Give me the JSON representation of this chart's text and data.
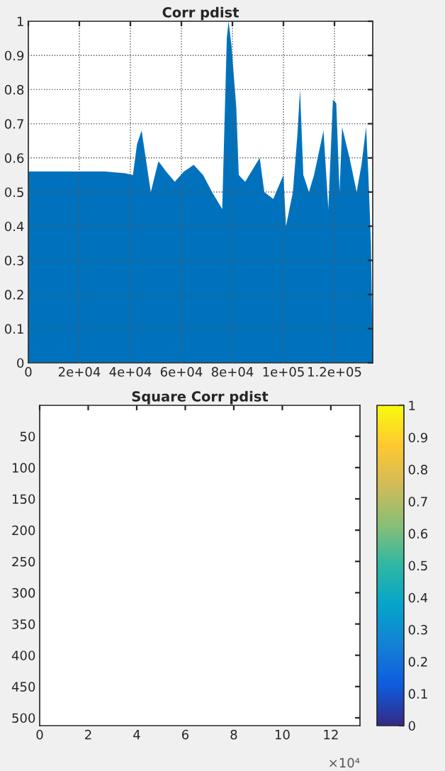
{
  "chart_data": [
    {
      "type": "area",
      "title": "Corr pdist",
      "x": [
        0,
        5000,
        10000,
        20000,
        30000,
        38000,
        41000,
        42600,
        44400,
        46000,
        48000,
        51000,
        54000,
        57400,
        61000,
        63000,
        64800,
        68500,
        72000,
        76000,
        77800,
        78500,
        79600,
        81500,
        82500,
        85000,
        90700,
        92500,
        96000,
        100000,
        101000,
        103700,
        105500,
        106500,
        107800,
        110000,
        112000,
        115700,
        117600,
        119400,
        120700,
        122000,
        123000,
        125900,
        128700,
        130600,
        132400,
        133300,
        134300,
        135000
      ],
      "series": [
        {
          "color": "#0072bd",
          "values": [
            0.56,
            0.56,
            0.56,
            0.56,
            0.56,
            0.555,
            0.55,
            0.64,
            0.68,
            0.6,
            0.5,
            0.59,
            0.56,
            0.53,
            0.56,
            0.57,
            0.58,
            0.55,
            0.5,
            0.45,
            0.95,
            1.0,
            0.93,
            0.75,
            0.55,
            0.53,
            0.6,
            0.5,
            0.48,
            0.55,
            0.4,
            0.5,
            0.67,
            0.8,
            0.55,
            0.5,
            0.55,
            0.68,
            0.45,
            0.77,
            0.76,
            0.5,
            0.69,
            0.6,
            0.5,
            0.58,
            0.69,
            0.55,
            0.35,
            0.0
          ]
        }
      ],
      "xlim": [
        0,
        135000
      ],
      "xticks": [
        0,
        {
          "value": 20000,
          "label": "2e+04"
        },
        {
          "value": 40000,
          "label": "4e+04"
        },
        {
          "value": 60000,
          "label": "6e+04"
        },
        {
          "value": 80000,
          "label": "8e+04"
        },
        {
          "value": 100000,
          "label": "1e+05"
        },
        {
          "value": 120000,
          "label": "1.2e+05"
        }
      ],
      "ylim": [
        0,
        1
      ],
      "yticks": [
        0,
        0.1,
        0.2,
        0.3,
        0.4,
        0.5,
        0.6,
        0.7,
        0.8,
        0.9,
        1
      ],
      "grid": true
    },
    {
      "type": "heatmap",
      "title": "Square Corr pdist",
      "xlim": [
        0,
        13.2
      ],
      "xticks": [
        0,
        2,
        4,
        6,
        8,
        10,
        12
      ],
      "ylim": [
        512.5,
        0.5
      ],
      "yticks": [
        50,
        100,
        150,
        200,
        250,
        300,
        350,
        400,
        450,
        500
      ],
      "clim": [
        0,
        1
      ],
      "cticks": [
        0,
        0.1,
        0.2,
        0.3,
        0.4,
        0.5,
        0.6,
        0.7,
        0.8,
        0.9,
        1
      ],
      "annotations": [
        "×10⁴"
      ]
    }
  ]
}
